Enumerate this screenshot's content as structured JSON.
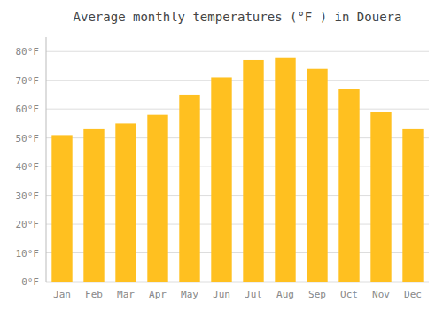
{
  "chart_data": {
    "type": "bar",
    "title": "Average monthly temperatures (°F ) in Douera",
    "categories": [
      "Jan",
      "Feb",
      "Mar",
      "Apr",
      "May",
      "Jun",
      "Jul",
      "Aug",
      "Sep",
      "Oct",
      "Nov",
      "Dec"
    ],
    "values": [
      51,
      53,
      55,
      58,
      65,
      71,
      77,
      78,
      74,
      67,
      59,
      53
    ],
    "color": "#FFC020",
    "ylim": [
      0,
      85
    ],
    "yticks": [
      {
        "value": 0,
        "label": "0°F"
      },
      {
        "value": 10,
        "label": "10°F"
      },
      {
        "value": 20,
        "label": "20°F"
      },
      {
        "value": 30,
        "label": "30°F"
      },
      {
        "value": 40,
        "label": "40°F"
      },
      {
        "value": 50,
        "label": "50°F"
      },
      {
        "value": 60,
        "label": "60°F"
      },
      {
        "value": 70,
        "label": "70°F"
      },
      {
        "value": 80,
        "label": "80°F"
      }
    ],
    "grid": true
  }
}
